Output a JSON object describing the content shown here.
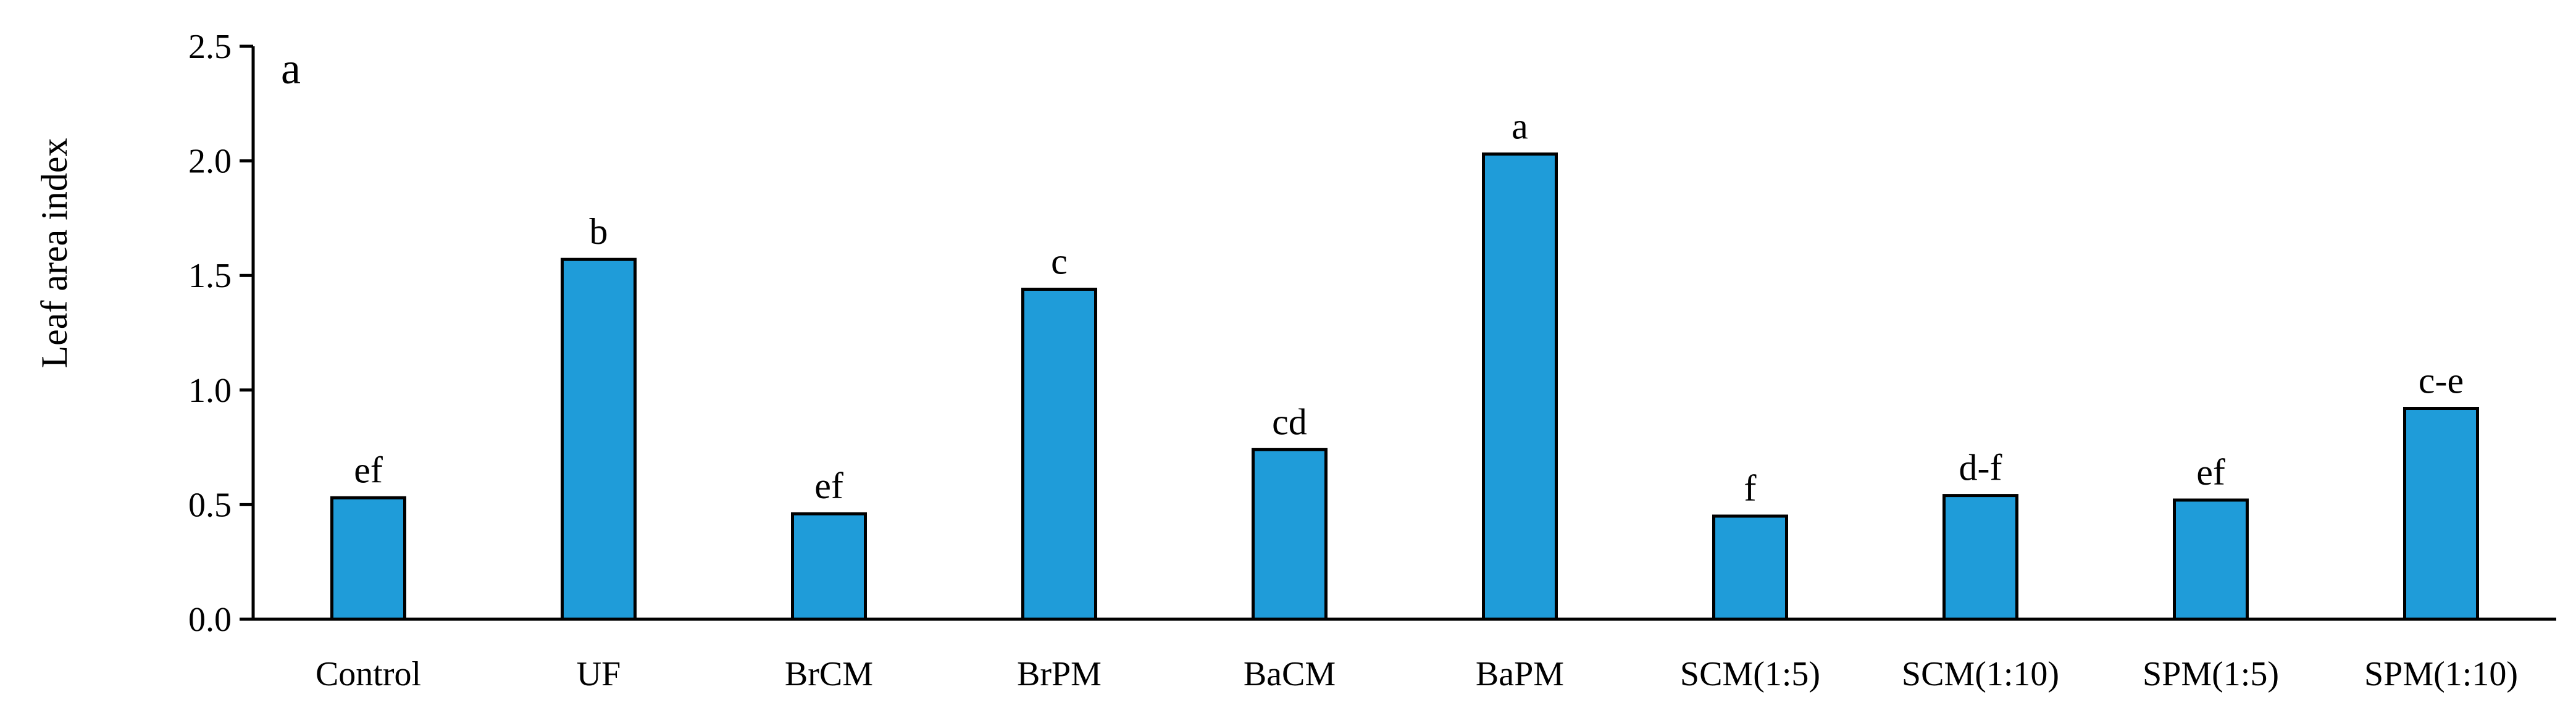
{
  "chart_data": {
    "type": "bar",
    "panel_label": "a",
    "title": "",
    "xlabel": "",
    "ylabel": "Leaf area index",
    "ylim": [
      0,
      2.5
    ],
    "yticks": [
      "0.0",
      "0.5",
      "1.0",
      "1.5",
      "2.0",
      "2.5"
    ],
    "grid": false,
    "categories": [
      "Control",
      "UF",
      "BrCM",
      "BrPM",
      "BaCM",
      "BaPM",
      "SCM(1:5)",
      "SCM(1:10)",
      "SPM(1:5)",
      "SPM(1:10)"
    ],
    "values": [
      0.53,
      1.57,
      0.46,
      1.44,
      0.74,
      2.03,
      0.45,
      0.54,
      0.52,
      0.92
    ],
    "significance_letters": [
      "ef",
      "b",
      "ef",
      "c",
      "cd",
      "a",
      "f",
      "d-f",
      "ef",
      "c-e"
    ],
    "colors": {
      "bar_fill": "#1f9cd9",
      "bar_stroke": "#000000",
      "axis": "#000000"
    }
  }
}
